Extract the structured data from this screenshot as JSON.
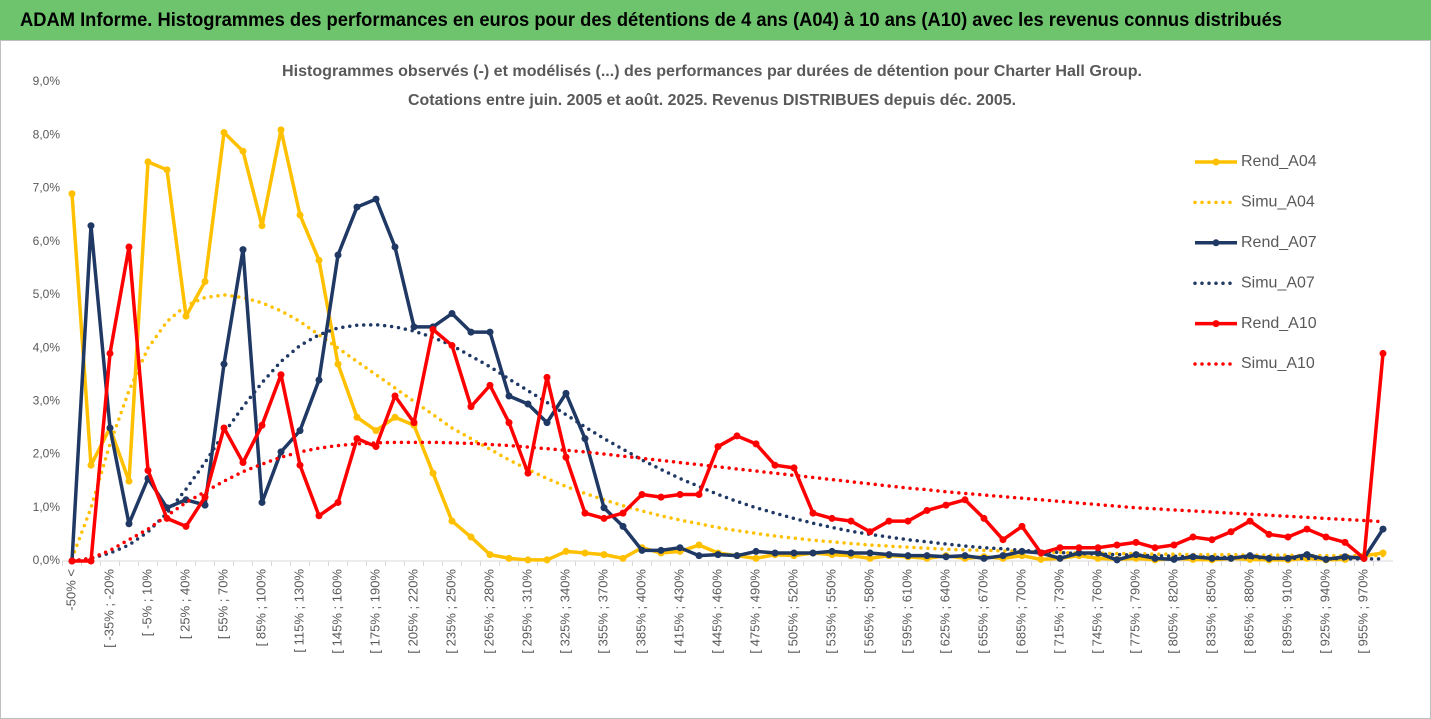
{
  "header": {
    "title": "ADAM Informe. Histogrammes des performances en euros pour des détentions de 4 ans (A04) à 10 ans (A10) avec les revenus connus distribués"
  },
  "chart_data": {
    "type": "line",
    "title": "Histogrammes observés (-) et modélisés (...) des performances par durées de détention pour Charter Hall Group.",
    "subtitle": "Cotations entre juin. 2005 et août. 2025. Revenus DISTRIBUES depuis déc. 2005.",
    "categories": [
      "-50% <",
      null,
      "[ -35% ; -20%",
      null,
      "[ -5% ; 10%",
      null,
      "[ 25% ; 40%",
      null,
      "[ 55% ; 70%",
      null,
      "[ 85% ; 100%",
      null,
      "[ 115% ; 130%",
      null,
      "[ 145% ; 160%",
      null,
      "[ 175% ; 190%",
      null,
      "[ 205% ; 220%",
      null,
      "[ 235% ; 250%",
      null,
      "[ 265% ; 280%",
      null,
      "[ 295% ; 310%",
      null,
      "[ 325% ; 340%",
      null,
      "[ 355% ; 370%",
      null,
      "[ 385% ; 400%",
      null,
      "[ 415% ; 430%",
      null,
      "[ 445% ; 460%",
      null,
      "[ 475% ; 490%",
      null,
      "[ 505% ; 520%",
      null,
      "[ 535% ; 550%",
      null,
      "[ 565% ; 580%",
      null,
      "[ 595% ; 610%",
      null,
      "[ 625% ; 640%",
      null,
      "[ 655% ; 670%",
      null,
      "[ 685% ; 700%",
      null,
      "[ 715% ; 730%",
      null,
      "[ 745% ; 760%",
      null,
      "[ 775% ; 790%",
      null,
      "[ 805% ; 820%",
      null,
      "[ 835% ; 850%",
      null,
      "[ 865% ; 880%",
      null,
      "[ 895% ; 910%",
      null,
      "[ 925% ; 940%",
      null,
      "[ 955% ; 970%",
      null
    ],
    "ylim": [
      0,
      9
    ],
    "yticks": [
      {
        "value": 0,
        "label": "0,0%"
      },
      {
        "value": 1,
        "label": "1,0%"
      },
      {
        "value": 2,
        "label": "2,0%"
      },
      {
        "value": 3,
        "label": "3,0%"
      },
      {
        "value": 4,
        "label": "4,0%"
      },
      {
        "value": 5,
        "label": "5,0%"
      },
      {
        "value": 6,
        "label": "6,0%"
      },
      {
        "value": 7,
        "label": "7,0%"
      },
      {
        "value": 8,
        "label": "8,0%"
      },
      {
        "value": 9,
        "label": "9,0%"
      }
    ],
    "grid": false,
    "legend": "right",
    "series": [
      {
        "name": "Rend_A04",
        "color": "#ffc000",
        "style": "solid",
        "markers": true,
        "values": [
          6.9,
          1.8,
          2.5,
          1.5,
          7.5,
          7.35,
          4.6,
          5.25,
          8.05,
          7.7,
          6.3,
          8.1,
          6.5,
          5.65,
          3.7,
          2.7,
          2.45,
          2.7,
          2.55,
          1.65,
          0.75,
          0.45,
          0.12,
          0.05,
          0.02,
          0.02,
          0.18,
          0.15,
          0.12,
          0.05,
          0.25,
          0.15,
          0.18,
          0.3,
          0.15,
          0.1,
          0.05,
          0.12,
          0.1,
          0.15,
          0.12,
          0.1,
          0.05,
          0.1,
          0.08,
          0.05,
          0.1,
          0.05,
          0.08,
          0.05,
          0.1,
          0.03,
          0.05,
          0.1,
          0.05,
          0.03,
          0.05,
          0.02,
          0.05,
          0.03,
          0.02,
          0.05,
          0.03,
          0.02,
          0.02,
          0.05,
          0.02,
          0.03,
          0.1,
          0.15
        ]
      },
      {
        "name": "Simu_A04",
        "color": "#ffc000",
        "style": "dotted",
        "markers": false,
        "values": [
          0.05,
          1.0,
          2.2,
          3.2,
          4.0,
          4.5,
          4.8,
          4.95,
          5.0,
          4.95,
          4.85,
          4.7,
          4.5,
          4.25,
          4.0,
          3.75,
          3.5,
          3.25,
          3.0,
          2.75,
          2.5,
          2.3,
          2.1,
          1.9,
          1.72,
          1.55,
          1.4,
          1.27,
          1.15,
          1.04,
          0.94,
          0.85,
          0.77,
          0.7,
          0.63,
          0.57,
          0.52,
          0.47,
          0.43,
          0.39,
          0.36,
          0.33,
          0.3,
          0.28,
          0.26,
          0.24,
          0.22,
          0.21,
          0.2,
          0.19,
          0.18,
          0.17,
          0.16,
          0.15,
          0.15,
          0.14,
          0.14,
          0.13,
          0.13,
          0.12,
          0.12,
          0.12,
          0.11,
          0.11,
          0.11,
          0.1,
          0.1,
          0.1,
          0.1,
          0.1
        ]
      },
      {
        "name": "Rend_A07",
        "color": "#1f3864",
        "style": "solid",
        "markers": true,
        "values": [
          0,
          6.3,
          2.5,
          0.7,
          1.55,
          1.0,
          1.15,
          1.05,
          3.7,
          5.85,
          1.1,
          2.05,
          2.45,
          3.4,
          5.75,
          6.65,
          6.8,
          5.9,
          4.4,
          4.4,
          4.65,
          4.3,
          4.3,
          3.1,
          2.95,
          2.6,
          3.15,
          2.3,
          1.0,
          0.65,
          0.2,
          0.2,
          0.25,
          0.1,
          0.12,
          0.1,
          0.18,
          0.15,
          0.15,
          0.15,
          0.18,
          0.15,
          0.15,
          0.12,
          0.1,
          0.1,
          0.08,
          0.1,
          0.05,
          0.1,
          0.18,
          0.15,
          0.05,
          0.15,
          0.15,
          0.02,
          0.12,
          0.05,
          0.03,
          0.08,
          0.05,
          0.05,
          0.1,
          0.05,
          0.05,
          0.12,
          0.03,
          0.08,
          0.05,
          0.6
        ]
      },
      {
        "name": "Simu_A07",
        "color": "#1f3864",
        "style": "dotted",
        "markers": false,
        "values": [
          0,
          0.05,
          0.15,
          0.3,
          0.55,
          0.9,
          1.35,
          1.85,
          2.4,
          2.9,
          3.35,
          3.75,
          4.05,
          4.25,
          4.38,
          4.43,
          4.44,
          4.4,
          4.32,
          4.2,
          4.05,
          3.85,
          3.65,
          3.42,
          3.2,
          2.98,
          2.75,
          2.52,
          2.3,
          2.1,
          1.9,
          1.72,
          1.55,
          1.4,
          1.25,
          1.12,
          1.0,
          0.9,
          0.8,
          0.71,
          0.63,
          0.56,
          0.5,
          0.45,
          0.4,
          0.36,
          0.32,
          0.28,
          0.25,
          0.23,
          0.2,
          0.18,
          0.16,
          0.14,
          0.13,
          0.12,
          0.11,
          0.1,
          0.09,
          0.08,
          0.07,
          0.07,
          0.06,
          0.06,
          0.05,
          0.05,
          0.05,
          0.04,
          0.04,
          0.04
        ]
      },
      {
        "name": "Rend_A10",
        "color": "#ff0000",
        "style": "solid",
        "markers": true,
        "values": [
          0,
          0,
          3.9,
          5.9,
          1.7,
          0.8,
          0.65,
          1.2,
          2.5,
          1.85,
          2.55,
          3.5,
          1.8,
          0.85,
          1.1,
          2.3,
          2.15,
          3.1,
          2.6,
          4.35,
          4.05,
          2.9,
          3.3,
          2.6,
          1.65,
          3.45,
          1.95,
          0.9,
          0.8,
          0.9,
          1.25,
          1.2,
          1.25,
          1.25,
          2.15,
          2.35,
          2.2,
          1.8,
          1.75,
          0.9,
          0.8,
          0.75,
          0.55,
          0.75,
          0.75,
          0.95,
          1.05,
          1.15,
          0.8,
          0.4,
          0.65,
          0.15,
          0.25,
          0.25,
          0.25,
          0.3,
          0.35,
          0.25,
          0.3,
          0.45,
          0.4,
          0.55,
          0.75,
          0.5,
          0.45,
          0.6,
          0.45,
          0.35,
          0.05,
          3.9
        ]
      },
      {
        "name": "Simu_A10",
        "color": "#ff0000",
        "style": "dotted",
        "markers": false,
        "values": [
          0,
          0.05,
          0.2,
          0.4,
          0.6,
          0.85,
          1.1,
          1.3,
          1.5,
          1.68,
          1.82,
          1.95,
          2.05,
          2.12,
          2.17,
          2.2,
          2.22,
          2.23,
          2.23,
          2.23,
          2.22,
          2.21,
          2.19,
          2.17,
          2.14,
          2.11,
          2.08,
          2.05,
          2.01,
          1.97,
          1.93,
          1.89,
          1.85,
          1.81,
          1.77,
          1.73,
          1.69,
          1.65,
          1.61,
          1.57,
          1.53,
          1.49,
          1.45,
          1.41,
          1.37,
          1.34,
          1.3,
          1.27,
          1.24,
          1.21,
          1.18,
          1.15,
          1.12,
          1.09,
          1.06,
          1.03,
          1.0,
          0.98,
          0.96,
          0.94,
          0.92,
          0.9,
          0.88,
          0.86,
          0.84,
          0.82,
          0.8,
          0.78,
          0.76,
          0.74
        ]
      }
    ]
  }
}
